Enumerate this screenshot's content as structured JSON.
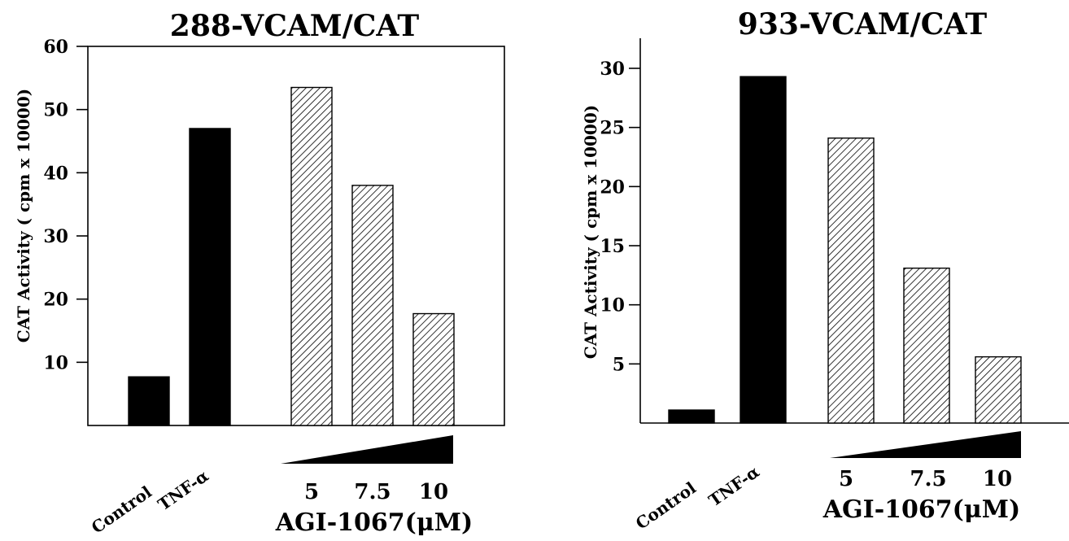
{
  "chart_data": [
    {
      "type": "bar",
      "title": "288-VCAM/CAT",
      "ylabel": "CAT Activity ( cpm x 10000)",
      "ylim": [
        0,
        60
      ],
      "yticks": [
        10,
        20,
        30,
        40,
        50,
        60
      ],
      "categories": [
        "Control",
        "TNF-α",
        "5",
        "7.5",
        "10"
      ],
      "values": [
        7.7,
        47,
        53.5,
        38,
        17.7
      ],
      "fills": [
        "solid",
        "solid",
        "hatched",
        "hatched",
        "hatched"
      ],
      "treatment_label": "AGI-1067(μM)",
      "grid": false
    },
    {
      "type": "bar",
      "title": "933-VCAM/CAT",
      "ylabel": "CAT Activity ( cpm x 10000)",
      "ylim": [
        0,
        32
      ],
      "yticks": [
        5,
        10,
        15,
        20,
        25,
        30
      ],
      "categories": [
        "Control",
        "TNF-α",
        "5",
        "7.5",
        "10"
      ],
      "values": [
        1.1,
        29.3,
        24.1,
        13.1,
        5.6
      ],
      "fills": [
        "solid",
        "solid",
        "hatched",
        "hatched",
        "hatched"
      ],
      "treatment_label": "AGI-1067(μM)",
      "grid": false
    }
  ],
  "colors": {
    "solid_bar": "#000000",
    "hatch": "#000000",
    "axes": "#000000"
  }
}
